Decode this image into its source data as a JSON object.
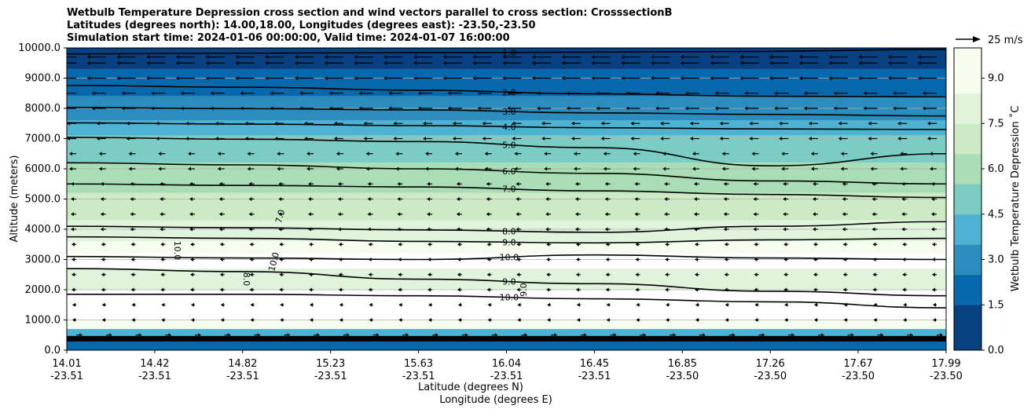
{
  "chart_data": {
    "type": "contour",
    "title_lines": [
      "Wetbulb Temperature Depression cross section and wind vectors parallel to cross section: CrosssectionB",
      "Latitudes (degrees north): 14.00,18.00, Longitudes (degrees east): -23.50,-23.50",
      "Simulation start time: 2024-01-06 00:00:00, Valid time: 2024-01-07 16:00:00"
    ],
    "xlabel_lat": "Latitude (degrees N)",
    "xlabel_lon": "Longitude (degrees E)",
    "ylabel": "Altitude (meters)",
    "colorbar_label": "Wetbulb Temperature Depression $^\\circ$C",
    "colorbar_label_display": "Wetbulb Temperature Depression ˚C",
    "colormap": "GnBu",
    "colorbar_range": [
      0.0,
      10.0
    ],
    "colorbar_ticks": [
      "0.0",
      "1.5",
      "3.0",
      "4.5",
      "6.0",
      "7.5",
      "9.0"
    ],
    "colorbar_colors": [
      "#084081",
      "#0868ac",
      "#2b8cbe",
      "#4eb3d3",
      "#7bccc4",
      "#a8ddb5",
      "#ccebc5",
      "#e0f3db",
      "#f7fcf0",
      "#ffffff"
    ],
    "ylim": [
      0,
      10000
    ],
    "y_ticks": [
      "0.0",
      "1000.0",
      "2000.0",
      "3000.0",
      "4000.0",
      "5000.0",
      "6000.0",
      "7000.0",
      "8000.0",
      "9000.0",
      "10000.0"
    ],
    "x_ticks": [
      {
        "lat": "14.01",
        "lon": "-23.51"
      },
      {
        "lat": "14.42",
        "lon": "-23.51"
      },
      {
        "lat": "14.82",
        "lon": "-23.51"
      },
      {
        "lat": "15.23",
        "lon": "-23.51"
      },
      {
        "lat": "15.63",
        "lon": "-23.51"
      },
      {
        "lat": "16.04",
        "lon": "-23.51"
      },
      {
        "lat": "16.45",
        "lon": "-23.51"
      },
      {
        "lat": "16.85",
        "lon": "-23.50"
      },
      {
        "lat": "17.26",
        "lon": "-23.50"
      },
      {
        "lat": "17.67",
        "lon": "-23.50"
      },
      {
        "lat": "17.99",
        "lon": "-23.50"
      }
    ],
    "horizontal_grid": true,
    "quiver_key_label": "25 m/s",
    "contours": [
      {
        "label": "1.0",
        "levels": [
          9800,
          9830,
          9850,
          9880,
          9950
        ]
      },
      {
        "label": "2.0",
        "levels": [
          8760,
          8700,
          8600,
          8480,
          8400,
          8380
        ]
      },
      {
        "label": "3.0",
        "levels": [
          8030,
          7990,
          7950,
          7850,
          7800,
          7750
        ]
      },
      {
        "label": "4.0",
        "levels": [
          7520,
          7480,
          7430,
          7360,
          7320,
          7300
        ]
      },
      {
        "label": "5.0",
        "levels": [
          7040,
          6980,
          6900,
          6700,
          6100,
          6500
        ]
      },
      {
        "label": "6.0",
        "levels": [
          6200,
          6130,
          6000,
          5850,
          5600,
          5500
        ]
      },
      {
        "label": "7.0",
        "levels": [
          5500,
          5450,
          5400,
          5270,
          5150,
          5050
        ]
      },
      {
        "label": "8.0",
        "levels": [
          4100,
          4050,
          3980,
          3900,
          4100,
          4250
        ]
      },
      {
        "label": "9.0",
        "levels": [
          3750,
          3700,
          3600,
          3550,
          3650,
          3700
        ]
      },
      {
        "label": "10.0",
        "levels": [
          3100,
          3050,
          3000,
          3150,
          3050,
          3000
        ]
      },
      {
        "label": "9.0",
        "levels": [
          2700,
          2600,
          2350,
          2200,
          1950,
          1800
        ]
      },
      {
        "label": "10.0",
        "levels": [
          1850,
          1850,
          1800,
          1700,
          1600,
          1400
        ]
      }
    ],
    "inline_contour_labels": [
      "7.0",
      "10.0",
      "8.0",
      "10.0",
      "9.0"
    ],
    "wind": "mostly easterly (leftward) vectors aloft, weakening to near zero in the middle troposphere, with strong near-surface vectors"
  }
}
